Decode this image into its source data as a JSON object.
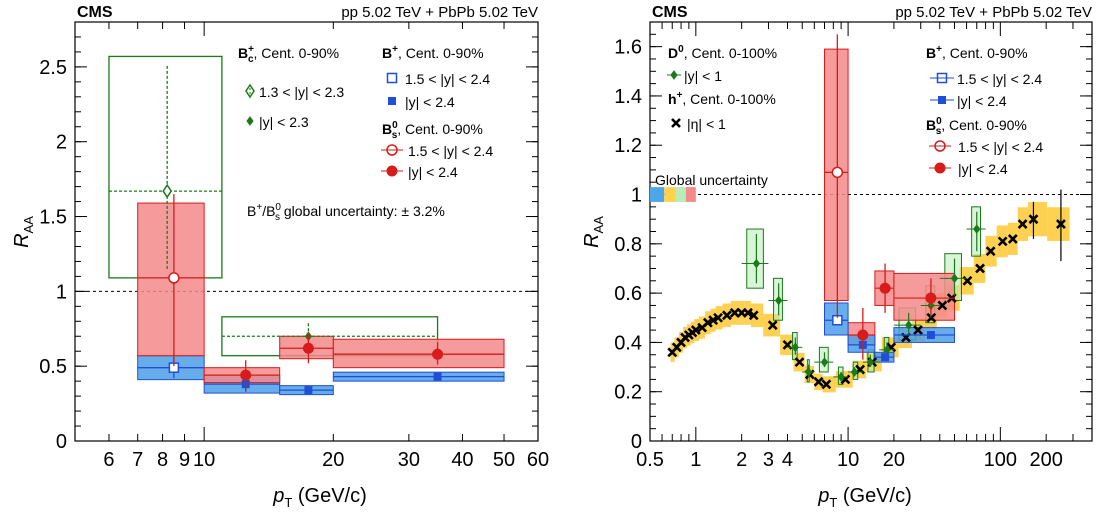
{
  "chart_data": [
    {
      "type": "scatter",
      "id": "left",
      "header_left": "CMS",
      "header_right": "pp 5.02 TeV + PbPb 5.02 TeV",
      "xlabel": "p_T (GeV/c)",
      "ylabel": "R_AA",
      "xscale": "log",
      "xlim": [
        5,
        60
      ],
      "ylim": [
        0,
        2.8
      ],
      "xticks": [
        6,
        7,
        8,
        9,
        10,
        20,
        30,
        40,
        50,
        60
      ],
      "xtick_labels": [
        "6",
        "7",
        "8",
        "9",
        "10",
        "20",
        "30",
        "40",
        "50",
        "60"
      ],
      "yticks": [
        0,
        0.5,
        1,
        1.5,
        2,
        2.5
      ],
      "ytick_labels": [
        "0",
        "0.5",
        "1",
        "1.5",
        "2",
        "2.5"
      ],
      "reference_line": 1,
      "annotation": "B+/Bs0 global uncertainty: ± 3.2%",
      "legend": {
        "bc_title": "Bc+, Cent. 0-90%",
        "bc_entries": [
          "1.3 < |y| < 2.3",
          "|y| < 2.3"
        ],
        "bplus_title": "B+, Cent. 0-90%",
        "bplus_entries": [
          "1.5 < |y| < 2.4",
          "|y| < 2.4"
        ],
        "bs_title": "Bs0, Cent. 0-90%",
        "bs_entries": [
          "1.5 < |y| < 2.4",
          "|y| < 2.4"
        ]
      },
      "series": [
        {
          "name": "Bc+ 1.3 < |y| < 2.3",
          "color": "#1a7a1a",
          "marker": "open-diamond",
          "box": "open",
          "points": [
            {
              "x": 8.2,
              "xlo": 6,
              "xhi": 11,
              "y": 1.67,
              "ylo": 1.15,
              "yhi": 2.52,
              "blo": 1.09,
              "bhi": 2.57
            }
          ]
        },
        {
          "name": "Bc+ |y| < 2.3",
          "color": "#1a7a1a",
          "marker": "small-diamond",
          "box": "open",
          "points": [
            {
              "x": 17.5,
              "xlo": 11,
              "xhi": 35,
              "y": 0.7,
              "ylo": 0.6,
              "yhi": 0.79,
              "blo": 0.57,
              "bhi": 0.83
            }
          ]
        },
        {
          "name": "B+ 1.5 < |y| < 2.4",
          "color": "#1f4fd6",
          "marker": "open-square",
          "box": "fill",
          "boxcolor": "#4d9fe8",
          "points": [
            {
              "x": 8.5,
              "xlo": 7,
              "xhi": 10,
              "y": 0.49,
              "ylo": 0.42,
              "yhi": 0.56,
              "blo": 0.41,
              "bhi": 0.57
            }
          ]
        },
        {
          "name": "B+ |y| < 2.4",
          "color": "#1f4fd6",
          "marker": "square",
          "box": "fill",
          "boxcolor": "#4d9fe8",
          "points": [
            {
              "x": 12.5,
              "xlo": 10,
              "xhi": 15,
              "y": 0.38,
              "ylo": 0.33,
              "yhi": 0.43,
              "blo": 0.32,
              "bhi": 0.44
            },
            {
              "x": 17.5,
              "xlo": 15,
              "xhi": 20,
              "y": 0.34,
              "ylo": 0.32,
              "yhi": 0.36,
              "blo": 0.31,
              "bhi": 0.37
            },
            {
              "x": 35,
              "xlo": 20,
              "xhi": 50,
              "y": 0.43,
              "ylo": 0.41,
              "yhi": 0.45,
              "blo": 0.4,
              "bhi": 0.46
            }
          ]
        },
        {
          "name": "Bs0 1.5 < |y| < 2.4",
          "color": "#d81b1b",
          "marker": "open-circle",
          "box": "fill",
          "boxcolor": "#f58a8a",
          "points": [
            {
              "x": 8.5,
              "xlo": 7,
              "xhi": 10,
              "y": 1.09,
              "ylo": 0.5,
              "yhi": 1.65,
              "blo": 0.57,
              "bhi": 1.59
            }
          ]
        },
        {
          "name": "Bs0 |y| < 2.4",
          "color": "#d81b1b",
          "marker": "circle",
          "box": "fill",
          "boxcolor": "#f58a8a",
          "points": [
            {
              "x": 12.5,
              "xlo": 10,
              "xhi": 15,
              "y": 0.44,
              "ylo": 0.33,
              "yhi": 0.54,
              "blo": 0.39,
              "bhi": 0.49
            },
            {
              "x": 17.5,
              "xlo": 15,
              "xhi": 20,
              "y": 0.62,
              "ylo": 0.52,
              "yhi": 0.72,
              "blo": 0.55,
              "bhi": 0.7
            },
            {
              "x": 35,
              "xlo": 20,
              "xhi": 50,
              "y": 0.58,
              "ylo": 0.51,
              "yhi": 0.66,
              "blo": 0.49,
              "bhi": 0.68
            }
          ]
        }
      ]
    },
    {
      "type": "scatter",
      "id": "right",
      "header_left": "CMS",
      "header_right": "pp 5.02 TeV + PbPb 5.02 TeV",
      "xlabel": "p_T (GeV/c)",
      "ylabel": "R_AA",
      "xscale": "log",
      "xlim": [
        0.5,
        400
      ],
      "ylim": [
        0,
        1.7
      ],
      "xticks": [
        0.5,
        1,
        2,
        3,
        4,
        10,
        20,
        100,
        200
      ],
      "xtick_labels": [
        "0.5",
        "1",
        "2",
        "3",
        "4",
        "10",
        "20",
        "100",
        "200"
      ],
      "yticks": [
        0,
        0.2,
        0.4,
        0.6,
        0.8,
        1,
        1.2,
        1.4,
        1.6
      ],
      "ytick_labels": [
        "0",
        "0.2",
        "0.4",
        "0.6",
        "0.8",
        "1",
        "1.2",
        "1.4",
        "1.6"
      ],
      "reference_line": 1,
      "annotation": "Global uncertainty",
      "global_uncertainty_boxes": [
        {
          "x0": 0.5,
          "x1": 0.62,
          "color": "#4da6e8"
        },
        {
          "x0": 0.62,
          "x1": 0.74,
          "color": "#ffd24d"
        },
        {
          "x0": 0.74,
          "x1": 0.86,
          "color": "#b8ecb8"
        },
        {
          "x0": 0.86,
          "x1": 1.0,
          "color": "#f58a8a"
        }
      ],
      "legend": {
        "d0_title": "D0, Cent. 0-100%",
        "d0_entries": [
          "|y| < 1"
        ],
        "h_title": "h+, Cent. 0-100%",
        "h_entries": [
          "|η| < 1"
        ],
        "bplus_title": "B+, Cent. 0-90%",
        "bplus_entries": [
          "1.5 < |y| < 2.4",
          "|y| < 2.4"
        ],
        "bs_title": "Bs0, Cent. 0-90%",
        "bs_entries": [
          "1.5 < |y| < 2.4",
          "|y| < 2.4"
        ]
      },
      "hadron_points": [
        [
          0.7,
          0.36
        ],
        [
          0.75,
          0.38
        ],
        [
          0.8,
          0.4
        ],
        [
          0.85,
          0.42
        ],
        [
          0.9,
          0.43
        ],
        [
          0.95,
          0.44
        ],
        [
          1.0,
          0.45
        ],
        [
          1.1,
          0.46
        ],
        [
          1.2,
          0.48
        ],
        [
          1.3,
          0.49
        ],
        [
          1.4,
          0.5
        ],
        [
          1.6,
          0.51
        ],
        [
          1.8,
          0.52
        ],
        [
          2.0,
          0.52
        ],
        [
          2.2,
          0.52
        ],
        [
          2.4,
          0.51
        ],
        [
          3.2,
          0.47
        ],
        [
          4.0,
          0.39
        ],
        [
          4.8,
          0.32
        ],
        [
          5.6,
          0.27
        ],
        [
          6.4,
          0.24
        ],
        [
          7.2,
          0.23
        ],
        [
          9.6,
          0.25
        ],
        [
          12,
          0.29
        ],
        [
          14.4,
          0.32
        ],
        [
          19.2,
          0.38
        ],
        [
          24,
          0.42
        ],
        [
          28.8,
          0.45
        ],
        [
          35.2,
          0.5
        ],
        [
          41.6,
          0.55
        ],
        [
          48,
          0.58
        ],
        [
          60.8,
          0.65
        ],
        [
          73.6,
          0.7
        ],
        [
          86.4,
          0.77
        ],
        [
          103.6,
          0.81
        ],
        [
          120.8,
          0.82
        ],
        [
          140,
          0.88
        ],
        [
          165,
          0.9
        ],
        [
          250,
          0.88
        ]
      ],
      "d0_points": [
        {
          "x": 2.5,
          "y": 0.72,
          "blo": 0.62,
          "bhi": 0.86,
          "xlo": 2.0,
          "xhi": 3.0
        },
        {
          "x": 3.5,
          "y": 0.57,
          "blo": 0.49,
          "bhi": 0.66,
          "xlo": 3.0,
          "xhi": 4.0
        },
        {
          "x": 4.5,
          "y": 0.38,
          "blo": 0.33,
          "bhi": 0.44,
          "xlo": 4.0,
          "xhi": 5.0
        },
        {
          "x": 5.5,
          "y": 0.28,
          "blo": 0.24,
          "bhi": 0.33,
          "xlo": 5.0,
          "xhi": 6.0
        },
        {
          "x": 7.0,
          "y": 0.32,
          "blo": 0.28,
          "bhi": 0.38,
          "xlo": 6.0,
          "xhi": 8.0
        },
        {
          "x": 9.0,
          "y": 0.26,
          "blo": 0.23,
          "bhi": 0.3,
          "xlo": 8.0,
          "xhi": 10.0
        },
        {
          "x": 11.0,
          "y": 0.28,
          "blo": 0.25,
          "bhi": 0.32,
          "xlo": 10.0,
          "xhi": 12.5
        },
        {
          "x": 14.0,
          "y": 0.32,
          "blo": 0.28,
          "bhi": 0.37,
          "xlo": 12.5,
          "xhi": 16.0
        },
        {
          "x": 18.0,
          "y": 0.37,
          "blo": 0.33,
          "bhi": 0.42,
          "xlo": 16.0,
          "xhi": 20.0
        },
        {
          "x": 25.0,
          "y": 0.47,
          "blo": 0.41,
          "bhi": 0.54,
          "xlo": 20.0,
          "xhi": 30.0
        },
        {
          "x": 35.0,
          "y": 0.55,
          "blo": 0.48,
          "bhi": 0.63,
          "xlo": 30.0,
          "xhi": 40.0
        },
        {
          "x": 50.0,
          "y": 0.66,
          "blo": 0.57,
          "bhi": 0.76,
          "xlo": 40.0,
          "xhi": 60.0
        },
        {
          "x": 70.0,
          "y": 0.86,
          "blo": 0.75,
          "bhi": 0.95,
          "xlo": 60.0,
          "xhi": 80.0
        }
      ],
      "bplus_points": [
        {
          "x": 8.5,
          "y": 0.49,
          "blo": 0.43,
          "bhi": 0.56,
          "xlo": 7,
          "xhi": 10,
          "open": true
        },
        {
          "x": 12.5,
          "y": 0.39,
          "blo": 0.36,
          "bhi": 0.43,
          "xlo": 10,
          "xhi": 15,
          "open": false
        },
        {
          "x": 17.5,
          "y": 0.34,
          "blo": 0.32,
          "bhi": 0.36,
          "xlo": 15,
          "xhi": 20,
          "open": false
        },
        {
          "x": 35,
          "y": 0.43,
          "blo": 0.4,
          "bhi": 0.46,
          "xlo": 20,
          "xhi": 50,
          "open": false
        }
      ],
      "bs_points": [
        {
          "x": 8.5,
          "y": 1.09,
          "blo": 0.57,
          "bhi": 1.59,
          "elo": 0.5,
          "ehi": 1.65,
          "xlo": 7,
          "xhi": 10,
          "open": true
        },
        {
          "x": 12.5,
          "y": 0.43,
          "blo": 0.39,
          "bhi": 0.48,
          "elo": 0.33,
          "ehi": 0.54,
          "xlo": 10,
          "xhi": 15,
          "open": false
        },
        {
          "x": 17.5,
          "y": 0.62,
          "blo": 0.55,
          "bhi": 0.69,
          "elo": 0.52,
          "ehi": 0.72,
          "xlo": 15,
          "xhi": 20,
          "open": false
        },
        {
          "x": 35,
          "y": 0.58,
          "blo": 0.49,
          "bhi": 0.68,
          "elo": 0.51,
          "ehi": 0.66,
          "xlo": 20,
          "xhi": 50,
          "open": false
        }
      ]
    }
  ]
}
